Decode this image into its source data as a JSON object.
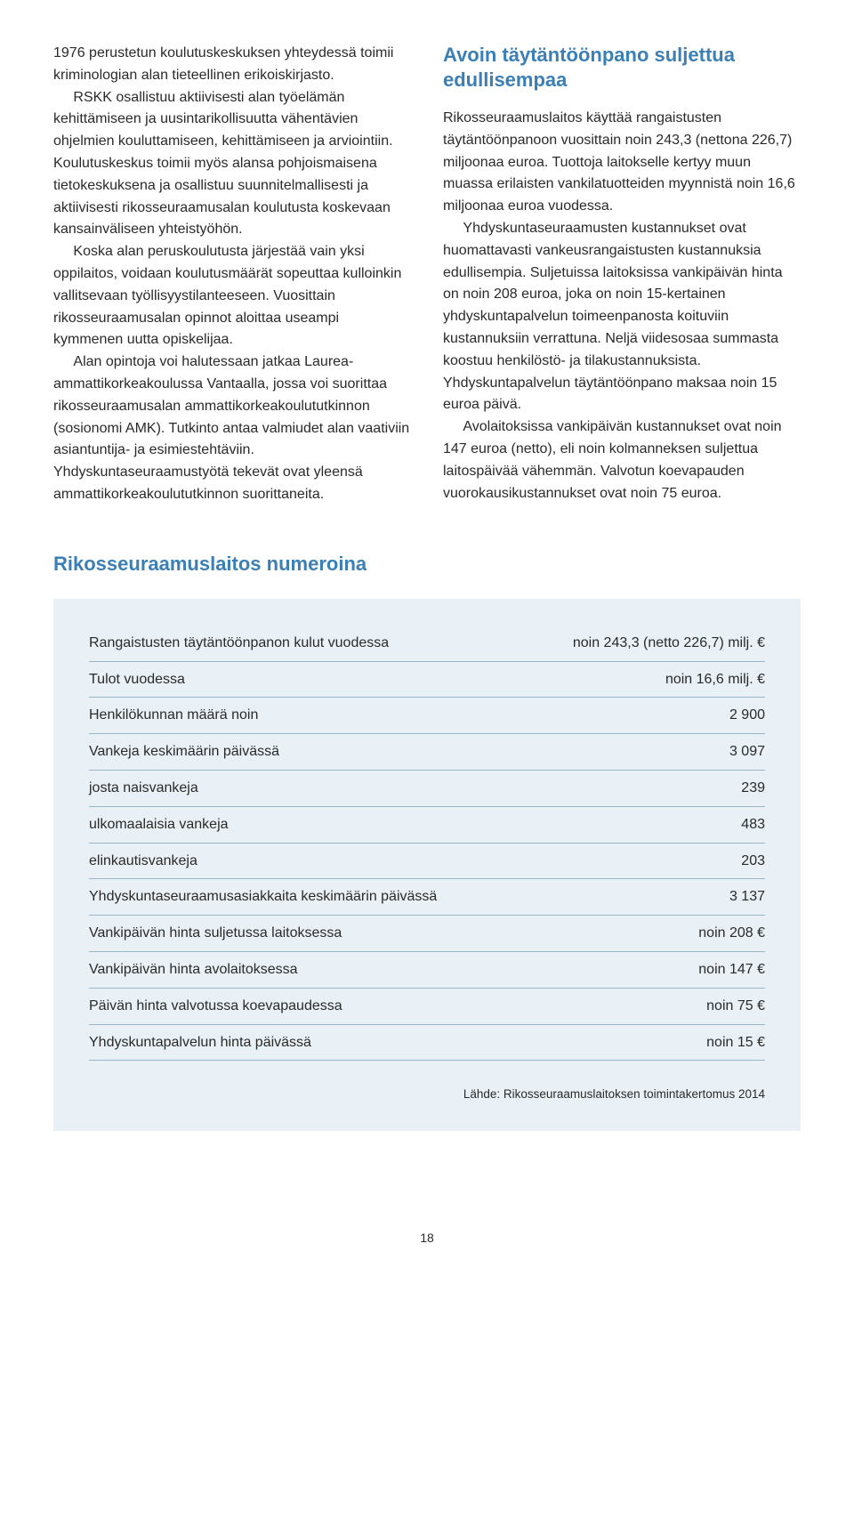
{
  "colors": {
    "heading": "#3a7fb5",
    "body_text": "#2a2a2a",
    "table_bg": "#e9f1f6",
    "table_rule": "#9ab6c9",
    "page_bg": "#ffffff"
  },
  "typography": {
    "body_fontsize_pt": 12,
    "heading_fontsize_pt": 16,
    "body_line_height": 1.55,
    "font_family": "Arial"
  },
  "left_column": {
    "p1": "1976 perustetun koulutuskeskuksen yhteydessä toimii kriminologian alan tieteellinen erikoiskirjasto.",
    "p2": "RSKK osallistuu aktiivisesti alan työelämän kehittämiseen ja uusintarikollisuutta vähentävien ohjelmien kouluttamiseen, kehittämiseen ja arviointiin. Koulutuskeskus toimii myös alansa pohjoismaisena tietokeskuksena ja osallistuu suunnitelmallisesti ja aktiivisesti rikosseuraamusalan koulutusta koskevaan kansainväliseen yhteistyöhön.",
    "p3": "Koska alan peruskoulutusta järjestää vain yksi oppilaitos, voidaan koulutusmäärät sopeuttaa kulloinkin vallitsevaan työllisyystilanteeseen. Vuosittain rikosseuraamusalan opinnot aloittaa useampi kymmenen uutta opiskelijaa.",
    "p4": "Alan opintoja voi halutessaan jatkaa Laurea-ammattikorkeakoulussa Vantaalla, jossa voi suorittaa rikosseuraamusalan ammattikorkeakoulututkinnon (sosionomi AMK). Tutkinto antaa valmiudet alan vaativiin asiantuntija- ja esimiestehtäviin. Yhdyskuntaseuraamustyötä tekevät ovat yleensä ammattikorkeakoulututkinnon suorittaneita."
  },
  "right_column": {
    "heading": "Avoin täytäntöönpano suljettua edullisempaa",
    "p1": "Rikosseuraamuslaitos käyttää rangaistusten täytäntöönpanoon vuosittain noin 243,3 (nettona 226,7) miljoonaa euroa. Tuottoja laitokselle kertyy muun muassa erilaisten vankilatuotteiden myynnistä noin 16,6 miljoonaa euroa vuodessa.",
    "p2": "Yhdyskuntaseuraamusten kustannukset ovat huomattavasti vankeusrangaistusten kustannuksia edullisempia. Suljetuissa laitoksissa vankipäivän hinta on noin 208 euroa, joka on noin 15-kertainen yhdyskuntapalvelun toimeenpanosta koituviin kustannuksiin verrattuna. Neljä viidesosaa summasta koostuu henkilöstö- ja tilakustannuksista. Yhdyskuntapalvelun täytäntöönpano maksaa noin 15 euroa päivä.",
    "p3": "Avolaitoksissa vankipäivän kustannukset ovat noin 147 euroa (netto), eli noin kolmanneksen suljettua laitospäivää vähemmän. Valvotun koevapauden vuorokausikustannukset ovat noin 75 euroa."
  },
  "table_section": {
    "heading": "Rikosseuraamuslaitos numeroina",
    "rows": [
      {
        "label": "Rangaistusten täytäntöönpanon kulut vuodessa",
        "value": "noin 243,3 (netto 226,7) milj. €"
      },
      {
        "label": "Tulot vuodessa",
        "value": "noin 16,6 milj. €"
      },
      {
        "label": "Henkilökunnan määrä noin",
        "value": "2 900"
      },
      {
        "label": "Vankeja keskimäärin päivässä",
        "value": "3 097"
      },
      {
        "label": "josta naisvankeja",
        "value": "239"
      },
      {
        "label": "ulkomaalaisia vankeja",
        "value": "483"
      },
      {
        "label": "elinkautisvankeja",
        "value": "203"
      },
      {
        "label": "Yhdyskuntaseuraamusasiakkaita keskimäärin päivässä",
        "value": "3 137"
      },
      {
        "label": "Vankipäivän hinta suljetussa laitoksessa",
        "value": "noin 208 €"
      },
      {
        "label": "Vankipäivän hinta avolaitoksessa",
        "value": "noin 147 €"
      },
      {
        "label": "Päivän hinta valvotussa koevapaudessa",
        "value": "noin 75 €"
      },
      {
        "label": "Yhdyskuntapalvelun hinta päivässä",
        "value": "noin 15 €"
      }
    ],
    "source": "Lähde: Rikosseuraamuslaitoksen toimintakertomus 2014"
  },
  "page_number": "18"
}
